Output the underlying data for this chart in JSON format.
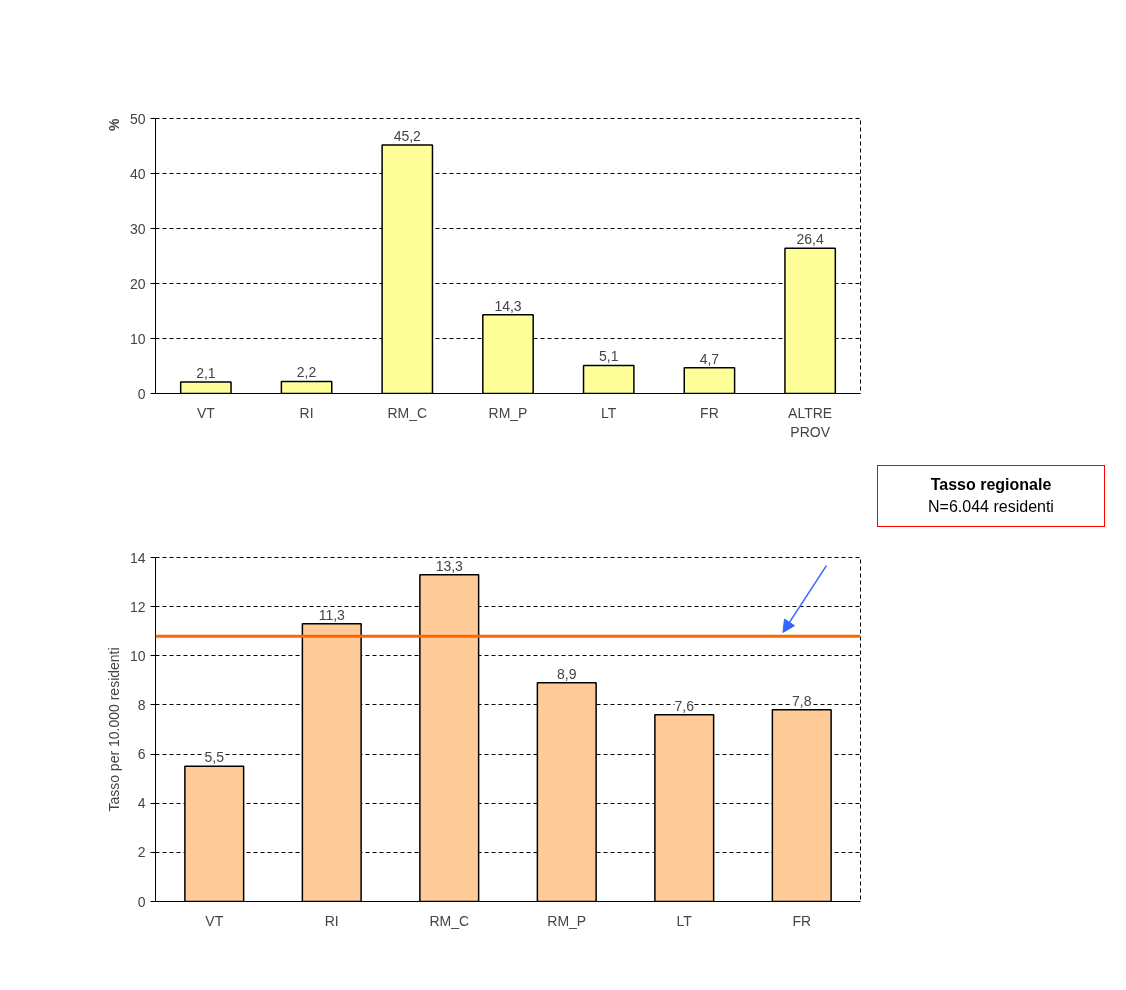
{
  "chart_data": [
    {
      "type": "bar",
      "ylabel": "%",
      "categories": [
        "VT",
        "RI",
        "RM_C",
        "RM_P",
        "LT",
        "FR",
        "ALTRE PROV"
      ],
      "values": [
        2.1,
        2.2,
        45.2,
        14.3,
        5.1,
        4.7,
        26.4
      ],
      "color": "#ffff99",
      "value_labels": [
        "2,1",
        "2,2",
        "45,2",
        "14,3",
        "5,1",
        "4,7",
        "26,4"
      ],
      "ylim": [
        0,
        50
      ],
      "yticks": [
        0,
        10,
        20,
        30,
        40,
        50
      ],
      "grid": "y"
    },
    {
      "type": "bar",
      "ylabel": "Tasso per 10.000 residenti",
      "categories": [
        "VT",
        "RI",
        "RM_C",
        "RM_P",
        "LT",
        "FR"
      ],
      "values": [
        5.5,
        11.3,
        13.3,
        8.9,
        7.6,
        7.8
      ],
      "color": "#ffcc99",
      "value_labels": [
        "5,5",
        "11,3",
        "13,3",
        "8,9",
        "7,6",
        "7,8"
      ],
      "ylim": [
        0,
        14
      ],
      "yticks": [
        0,
        2,
        4,
        6,
        8,
        10,
        12,
        14
      ],
      "grid": "y",
      "ref_lines": [
        {
          "axis": "y",
          "value": 10.8,
          "color": "#ff6600"
        }
      ],
      "annotations": [
        "Tasso regionale",
        "N=6.044 residenti"
      ]
    }
  ]
}
